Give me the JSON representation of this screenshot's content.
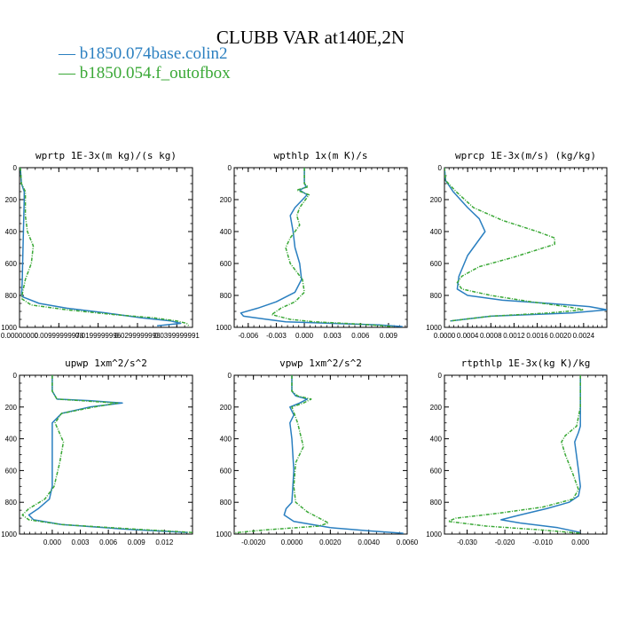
{
  "title": "CLUBB VAR at140E,2N",
  "legend": [
    {
      "label": "b1850.074base.colin2",
      "color": "#2a7fc0"
    },
    {
      "label": "b1850.054.f_outofbox",
      "color": "#3aa836"
    }
  ],
  "chart_data": [
    {
      "type": "line",
      "title": "wprtp  1E-3x(m kg)/(s kg)",
      "xlim": [
        0,
        0.044
      ],
      "ylim": [
        1000,
        0
      ],
      "xticks": [
        0,
        0.01,
        0.02,
        0.03,
        0.04
      ],
      "xtick_labels": [
        "0.00000000",
        "0.00999999978",
        "0.0199999996",
        "0.0299999993",
        "0.0399999991"
      ],
      "yticks": [
        0,
        200,
        400,
        600,
        800,
        1000
      ],
      "ytick_labels": [
        "0",
        "200",
        "400",
        "600",
        "800",
        "1000"
      ],
      "series": [
        {
          "name": "b1850.074base.colin2",
          "color": "#2a7fc0",
          "dashed": false,
          "x": [
            0.0002,
            0.0005,
            0.0012,
            0.0012,
            0.001,
            0.0008,
            0.0007,
            0.0006,
            0.0005,
            0.0009,
            0.005,
            0.012,
            0.022,
            0.031,
            0.0385,
            0.041,
            0.035
          ],
          "y": [
            0,
            100,
            150,
            200,
            400,
            600,
            700,
            760,
            790,
            810,
            850,
            880,
            910,
            940,
            960,
            975,
            990
          ]
        },
        {
          "name": "b1850.054.f_outofbox",
          "color": "#3aa836",
          "dashed": true,
          "x": [
            0.0002,
            0.0005,
            0.0015,
            0.0015,
            0.002,
            0.0035,
            0.003,
            0.0015,
            0.0008,
            0.0005,
            0.003,
            0.012,
            0.024,
            0.034,
            0.04,
            0.0425,
            0.043
          ],
          "y": [
            0,
            100,
            150,
            300,
            400,
            490,
            600,
            700,
            780,
            820,
            860,
            890,
            920,
            940,
            960,
            975,
            990
          ]
        }
      ]
    },
    {
      "type": "line",
      "title": "wpthlp  1x(m K)/s",
      "xlim": [
        -0.0075,
        0.011
      ],
      "ylim": [
        1000,
        0
      ],
      "xticks": [
        -0.006,
        -0.003,
        0,
        0.003,
        0.006,
        0.009
      ],
      "xtick_labels": [
        "-0.006",
        "-0.003",
        "0.000",
        "0.003",
        "0.006",
        "0.009"
      ],
      "yticks": [
        0,
        200,
        400,
        600,
        800,
        1000
      ],
      "ytick_labels": [
        "0",
        "200",
        "400",
        "600",
        "800",
        "1000"
      ],
      "series": [
        {
          "name": "b1850.074base.colin2",
          "color": "#2a7fc0",
          "dashed": false,
          "x": [
            0,
            0,
            0.0002,
            -0.0005,
            0.0003,
            -0.001,
            -0.0015,
            -0.0012,
            -0.001,
            -0.0005,
            -0.0003,
            -0.001,
            -0.003,
            -0.005,
            -0.0068,
            -0.0065,
            -0.004,
            -0.002,
            0.003,
            0.008,
            0.0105
          ],
          "y": [
            0,
            100,
            120,
            140,
            170,
            250,
            300,
            400,
            500,
            600,
            700,
            780,
            840,
            880,
            910,
            930,
            950,
            965,
            975,
            985,
            995
          ]
        },
        {
          "name": "b1850.054.f_outofbox",
          "color": "#3aa836",
          "dashed": true,
          "x": [
            0,
            0,
            0.0004,
            -0.0008,
            0.0005,
            -0.0005,
            -0.0008,
            -0.0005,
            -0.0015,
            -0.002,
            -0.0015,
            -0.0002,
            0,
            -0.001,
            -0.0025,
            -0.0035,
            -0.0015,
            0.001,
            0.006,
            0.0095
          ],
          "y": [
            0,
            100,
            120,
            140,
            170,
            250,
            300,
            360,
            440,
            500,
            600,
            700,
            780,
            840,
            880,
            920,
            950,
            965,
            980,
            995
          ]
        }
      ]
    },
    {
      "type": "line",
      "title": "wprcp  1E-3x(m/s) (kg/kg)",
      "xlim": [
        0,
        0.0028
      ],
      "ylim": [
        1000,
        0
      ],
      "xticks": [
        0,
        0.0004,
        0.0008,
        0.0012,
        0.0016,
        0.002,
        0.0024
      ],
      "xtick_labels": [
        "0.0000",
        "0.0004",
        "0.0008",
        "0.0012",
        "0.0016",
        "0.0020",
        "0.0024"
      ],
      "yticks": [
        0,
        200,
        400,
        600,
        800,
        1000
      ],
      "ytick_labels": [
        "0",
        "200",
        "400",
        "600",
        "800",
        "1000"
      ],
      "series": [
        {
          "name": "b1850.074base.colin2",
          "color": "#2a7fc0",
          "dashed": false,
          "x": [
            0,
            2e-05,
            0.00015,
            0.0004,
            0.0006,
            0.0007,
            0.0006,
            0.0004,
            0.00025,
            0.00022,
            0.0004,
            0.001,
            0.0018,
            0.0025,
            0.0028,
            0.0022,
            0.0008,
            0.0001
          ],
          "y": [
            0,
            80,
            150,
            250,
            320,
            400,
            450,
            550,
            680,
            760,
            800,
            830,
            850,
            870,
            890,
            910,
            930,
            960
          ]
        },
        {
          "name": "b1850.054.f_outofbox",
          "color": "#3aa836",
          "dashed": true,
          "x": [
            0,
            2e-05,
            0.0002,
            0.0005,
            0.001,
            0.0016,
            0.0019,
            0.0019,
            0.0012,
            0.0006,
            0.0003,
            0.00022,
            0.0003,
            0.0008,
            0.0015,
            0.0021,
            0.0024,
            0.0018,
            0.0008,
            0.0001
          ],
          "y": [
            0,
            80,
            150,
            250,
            330,
            400,
            440,
            480,
            560,
            620,
            680,
            720,
            760,
            800,
            840,
            870,
            890,
            910,
            930,
            960
          ]
        }
      ]
    },
    {
      "type": "line",
      "title": "upwp  1xm^2/s^2",
      "xlim": [
        -0.0035,
        0.015
      ],
      "ylim": [
        1000,
        0
      ],
      "xticks": [
        0,
        0.003,
        0.006,
        0.009,
        0.012
      ],
      "xtick_labels": [
        "0.000",
        "0.003",
        "0.006",
        "0.009",
        "0.012"
      ],
      "yticks": [
        0,
        200,
        400,
        600,
        800,
        1000
      ],
      "ytick_labels": [
        "0",
        "200",
        "400",
        "600",
        "800",
        "1000"
      ],
      "series": [
        {
          "name": "b1850.074base.colin2",
          "color": "#2a7fc0",
          "dashed": false,
          "x": [
            0,
            0,
            0.0005,
            0.004,
            0.0075,
            0.004,
            0.001,
            0,
            0,
            0,
            -0.0003,
            -0.0015,
            -0.0025,
            -0.002,
            0.001,
            0.008,
            0.0145
          ],
          "y": [
            0,
            100,
            150,
            160,
            175,
            200,
            240,
            300,
            500,
            700,
            780,
            840,
            880,
            910,
            940,
            970,
            990
          ]
        },
        {
          "name": "b1850.054.f_outofbox",
          "color": "#3aa836",
          "dashed": true,
          "x": [
            0,
            0,
            0.0005,
            0.003,
            0.007,
            0.0045,
            0.001,
            0.0003,
            0.0012,
            0.0008,
            0.0002,
            -0.0008,
            -0.0025,
            -0.0032,
            -0.0025,
            0.001,
            0.009,
            0.015
          ],
          "y": [
            0,
            100,
            150,
            160,
            175,
            200,
            240,
            300,
            420,
            550,
            700,
            780,
            840,
            880,
            910,
            940,
            970,
            990
          ]
        }
      ]
    },
    {
      "type": "line",
      "title": "vpwp  1xm^2/s^2",
      "xlim": [
        -0.003,
        0.006
      ],
      "ylim": [
        1000,
        0
      ],
      "xticks": [
        -0.002,
        0,
        0.002,
        0.004,
        0.006
      ],
      "xtick_labels": [
        "-0.0020",
        "0.0000",
        "0.0020",
        "0.0040",
        "0.0060"
      ],
      "yticks": [
        0,
        200,
        400,
        600,
        800,
        1000
      ],
      "ytick_labels": [
        "0",
        "200",
        "400",
        "600",
        "800",
        "1000"
      ],
      "series": [
        {
          "name": "b1850.074base.colin2",
          "color": "#2a7fc0",
          "dashed": false,
          "x": [
            0,
            0,
            0.0002,
            0.0008,
            0.0004,
            -0.0001,
            0.0001,
            -0.0001,
            0,
            0.0001,
            0,
            -0.0003,
            -0.0004,
            0.0001,
            0.002,
            0.004,
            0.0058
          ],
          "y": [
            0,
            100,
            130,
            150,
            175,
            200,
            250,
            300,
            400,
            600,
            800,
            840,
            880,
            920,
            960,
            980,
            995
          ]
        },
        {
          "name": "b1850.054.f_outofbox",
          "color": "#3aa836",
          "dashed": true,
          "x": [
            0,
            0,
            0.0003,
            0.001,
            0.0006,
            0,
            0.0003,
            0.0006,
            0.0002,
            0.0001,
            0.0002,
            0.0008,
            0.0019,
            0.0014,
            -0.0015,
            -0.0032
          ],
          "y": [
            0,
            100,
            130,
            150,
            175,
            200,
            300,
            450,
            550,
            700,
            800,
            860,
            930,
            950,
            975,
            995
          ]
        }
      ]
    },
    {
      "type": "line",
      "title": "rtpthlp  1E-3x(kg K)/kg",
      "xlim": [
        -0.036,
        0.007
      ],
      "ylim": [
        1000,
        0
      ],
      "xticks": [
        -0.03,
        -0.02,
        -0.01,
        0
      ],
      "xtick_labels": [
        "-0.030",
        "-0.020",
        "-0.010",
        "0.000"
      ],
      "yticks": [
        0,
        200,
        400,
        600,
        800,
        1000
      ],
      "ytick_labels": [
        "0",
        "200",
        "400",
        "600",
        "800",
        "1000"
      ],
      "series": [
        {
          "name": "b1850.074base.colin2",
          "color": "#2a7fc0",
          "dashed": false,
          "x": [
            0,
            0,
            0,
            -0.0005,
            -0.0015,
            -0.0005,
            0,
            -0.0005,
            -0.003,
            -0.009,
            -0.016,
            -0.021,
            -0.016,
            -0.006,
            0
          ],
          "y": [
            0,
            200,
            320,
            360,
            420,
            600,
            700,
            760,
            800,
            840,
            880,
            910,
            930,
            960,
            990
          ]
        },
        {
          "name": "b1850.054.f_outofbox",
          "color": "#3aa836",
          "dashed": true,
          "x": [
            0,
            0,
            -0.001,
            -0.004,
            -0.005,
            -0.004,
            -0.002,
            -0.0005,
            -0.002,
            -0.01,
            -0.022,
            -0.033,
            -0.035,
            -0.025,
            -0.01,
            0
          ],
          "y": [
            0,
            200,
            320,
            380,
            420,
            500,
            620,
            720,
            780,
            830,
            870,
            900,
            920,
            950,
            975,
            995
          ]
        }
      ]
    }
  ]
}
